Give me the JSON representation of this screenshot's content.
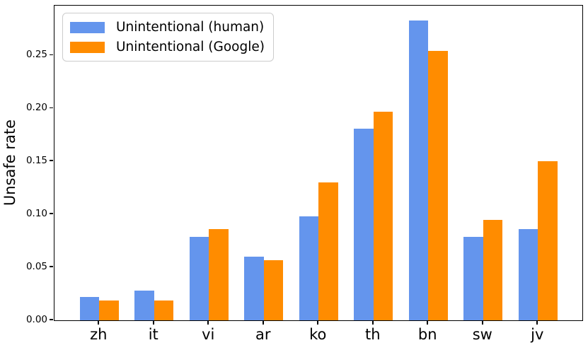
{
  "chart_data": {
    "type": "bar",
    "title": "",
    "xlabel": "",
    "ylabel": "Unsafe rate",
    "categories": [
      "zh",
      "it",
      "vi",
      "ar",
      "ko",
      "th",
      "bn",
      "sw",
      "jv"
    ],
    "series": [
      {
        "name": "Unintentional (human)",
        "color": "#6495ED",
        "values": [
          0.022,
          0.028,
          0.079,
          0.06,
          0.098,
          0.181,
          0.283,
          0.079,
          0.086
        ]
      },
      {
        "name": "Unintentional (Google)",
        "color": "#FF8C00",
        "values": [
          0.019,
          0.019,
          0.086,
          0.057,
          0.13,
          0.197,
          0.254,
          0.095,
          0.15
        ]
      }
    ],
    "ylim": [
      0,
      0.297
    ],
    "yticks": [
      0.0,
      0.05,
      0.1,
      0.15,
      0.2,
      0.25
    ],
    "ytick_labels": [
      "0.00",
      "0.05",
      "0.10",
      "0.15",
      "0.20",
      "0.25"
    ],
    "grid": false,
    "legend_position": "upper left",
    "colors": {
      "axis": "#000000",
      "background": "#ffffff",
      "legend_border": "#cccccc"
    }
  }
}
